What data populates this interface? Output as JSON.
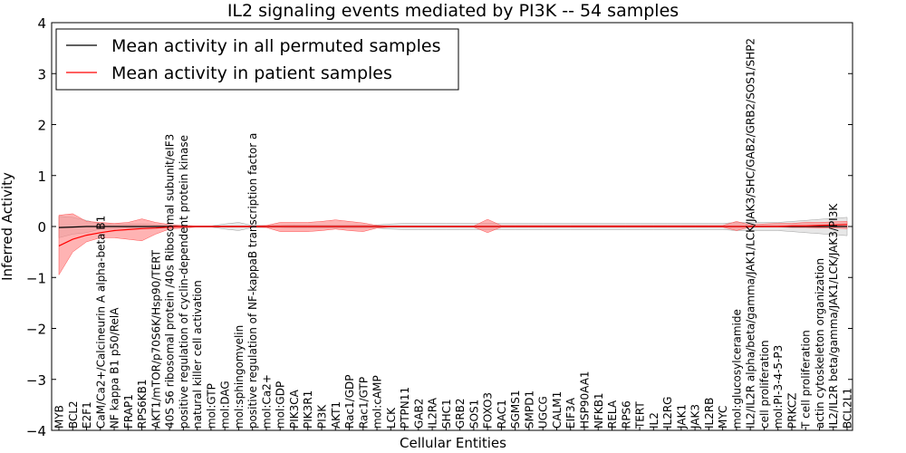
{
  "chart_data": {
    "type": "line",
    "title": "IL2 signaling events mediated by PI3K -- 54 samples",
    "xlabel": "Cellular Entities",
    "ylabel": "Inferred Activity",
    "ylim": [
      -4,
      4
    ],
    "yticks": [
      -4,
      -3,
      -2,
      -1,
      0,
      1,
      2,
      3,
      4
    ],
    "grid": false,
    "legend_position": "top-left",
    "categories": [
      "MYB",
      "BCL2",
      "E2F1",
      "CaM/Ca2+/Calcineurin A alpha-beta B1",
      "NF kappa B1 p50/RelA",
      "FRAP1",
      "RPS6KB1",
      "AKT1/mTOR/p70S6K/Hsp90/TERT",
      "40S S6 ribosomal protein /40s Ribosomal subunit/eIF3",
      "positive regulation of cyclin-dependent protein kinase",
      "natural killer cell activation",
      "mol:GTP",
      "mol:DAG",
      "mol:sphingomyelin",
      "positive regulation of NF-kappaB transcription factor a",
      "mol:Ca2+",
      "mol:GDP",
      "PIK3CA",
      "PIK3R1",
      "PI3K",
      "AKT1",
      "Rac1/GDP",
      "Rac1/GTP",
      "mol:cAMP",
      "LCK",
      "PTPN11",
      "GAB2",
      "IL2RA",
      "SHC1",
      "GRB2",
      "SOS1",
      "FOXO3",
      "RAC1",
      "SGMS1",
      "SMPD1",
      "UGCG",
      "CALM1",
      "EIF3A",
      "HSP90AA1",
      "NFKB1",
      "RELA",
      "RPS6",
      "TERT",
      "IL2",
      "IL2RG",
      "JAK1",
      "JAK3",
      "IL2RB",
      "MYC",
      "mol:glucosylceramide",
      "IL2/IL2R alpha/beta/gamma/JAK1/LCK/JAK3/SHC/GAB2/GRB2/SOS1/SHP2",
      "cell proliferation",
      "mol:PI-3-4-5-P3",
      "PRKCZ",
      "T cell proliferation",
      "actin cytoskeleton organization",
      "IL2/IL2R beta/gamma/JAK1/LCK/JAK3/PI3K",
      "BCL2L1"
    ],
    "series": [
      {
        "name": "Mean activity in all permuted samples",
        "color": "#000000",
        "values": [
          -0.02,
          -0.01,
          0.0,
          0.0,
          0.0,
          0.0,
          0.0,
          0.0,
          0.0,
          0.0,
          0.0,
          0.0,
          0.0,
          0.0,
          0.0,
          0.0,
          0.0,
          0.0,
          0.0,
          0.0,
          0.0,
          0.0,
          0.0,
          0.0,
          0.0,
          0.0,
          0.0,
          0.0,
          0.0,
          0.0,
          0.0,
          0.0,
          0.0,
          0.0,
          0.0,
          0.0,
          0.0,
          0.0,
          0.0,
          0.0,
          0.0,
          0.0,
          0.0,
          0.0,
          0.0,
          0.0,
          0.0,
          0.0,
          0.0,
          0.0,
          0.0,
          0.0,
          0.0,
          0.0,
          0.0,
          0.0,
          0.0,
          0.0
        ],
        "band_low": [
          -0.22,
          -0.15,
          -0.12,
          -0.05,
          -0.04,
          -0.03,
          -0.03,
          -0.02,
          -0.02,
          -0.02,
          -0.01,
          -0.01,
          -0.05,
          -0.08,
          -0.02,
          -0.02,
          -0.02,
          -0.03,
          -0.03,
          -0.03,
          -0.03,
          -0.03,
          -0.03,
          -0.03,
          -0.05,
          -0.06,
          -0.06,
          -0.06,
          -0.06,
          -0.06,
          -0.06,
          -0.06,
          -0.06,
          -0.06,
          -0.06,
          -0.06,
          -0.06,
          -0.06,
          -0.06,
          -0.06,
          -0.06,
          -0.06,
          -0.06,
          -0.06,
          -0.06,
          -0.06,
          -0.06,
          -0.06,
          -0.06,
          -0.08,
          -0.08,
          -0.08,
          -0.08,
          -0.1,
          -0.12,
          -0.14,
          -0.16,
          -0.18
        ],
        "band_high": [
          0.2,
          0.18,
          0.12,
          0.05,
          0.04,
          0.05,
          0.05,
          0.03,
          0.02,
          0.02,
          0.01,
          0.01,
          0.05,
          0.08,
          0.02,
          0.02,
          0.02,
          0.03,
          0.03,
          0.03,
          0.03,
          0.03,
          0.03,
          0.03,
          0.05,
          0.06,
          0.06,
          0.06,
          0.06,
          0.06,
          0.06,
          0.06,
          0.06,
          0.06,
          0.06,
          0.06,
          0.06,
          0.06,
          0.06,
          0.06,
          0.06,
          0.06,
          0.06,
          0.06,
          0.06,
          0.06,
          0.06,
          0.06,
          0.06,
          0.08,
          0.08,
          0.08,
          0.08,
          0.1,
          0.12,
          0.14,
          0.16,
          0.18
        ]
      },
      {
        "name": "Mean activity in patient samples",
        "color": "#ff0000",
        "values": [
          -0.38,
          -0.25,
          -0.17,
          -0.12,
          -0.08,
          -0.06,
          -0.04,
          -0.03,
          -0.01,
          0.0,
          0.0,
          0.0,
          0.0,
          0.0,
          0.0,
          0.0,
          0.0,
          0.0,
          0.0,
          0.0,
          0.0,
          0.0,
          0.0,
          0.0,
          0.0,
          0.0,
          0.0,
          0.0,
          0.0,
          0.0,
          0.0,
          0.0,
          0.0,
          0.0,
          0.0,
          0.0,
          0.0,
          0.0,
          0.0,
          0.0,
          0.0,
          0.0,
          0.0,
          0.0,
          0.0,
          0.0,
          0.0,
          0.0,
          0.0,
          0.0,
          0.0,
          0.0,
          0.0,
          0.01,
          0.01,
          0.02,
          0.03,
          0.04
        ],
        "band_low": [
          -0.95,
          -0.5,
          -0.3,
          -0.22,
          -0.22,
          -0.25,
          -0.28,
          -0.15,
          -0.05,
          -0.03,
          -0.01,
          -0.01,
          -0.01,
          -0.01,
          -0.01,
          -0.02,
          -0.1,
          -0.1,
          -0.1,
          -0.08,
          -0.05,
          -0.08,
          -0.1,
          -0.03,
          -0.01,
          -0.01,
          -0.01,
          -0.01,
          -0.01,
          -0.01,
          -0.01,
          -0.12,
          -0.01,
          -0.01,
          -0.01,
          -0.01,
          -0.01,
          -0.01,
          -0.01,
          -0.01,
          -0.01,
          -0.01,
          -0.01,
          -0.01,
          -0.01,
          -0.01,
          -0.01,
          -0.01,
          -0.01,
          -0.08,
          -0.01,
          -0.01,
          -0.01,
          -0.02,
          -0.02,
          -0.03,
          -0.03,
          -0.04
        ],
        "band_high": [
          0.22,
          0.25,
          0.1,
          0.08,
          0.06,
          0.08,
          0.15,
          0.08,
          0.04,
          0.02,
          0.01,
          0.01,
          0.01,
          0.01,
          0.01,
          0.02,
          0.08,
          0.08,
          0.08,
          0.1,
          0.13,
          0.1,
          0.07,
          0.02,
          0.01,
          0.01,
          0.01,
          0.01,
          0.01,
          0.01,
          0.01,
          0.14,
          0.02,
          0.02,
          0.02,
          0.02,
          0.02,
          0.02,
          0.02,
          0.02,
          0.02,
          0.02,
          0.02,
          0.02,
          0.02,
          0.02,
          0.02,
          0.02,
          0.02,
          0.1,
          0.03,
          0.05,
          0.06,
          0.06,
          0.08,
          0.08,
          0.09,
          0.1
        ]
      }
    ]
  }
}
